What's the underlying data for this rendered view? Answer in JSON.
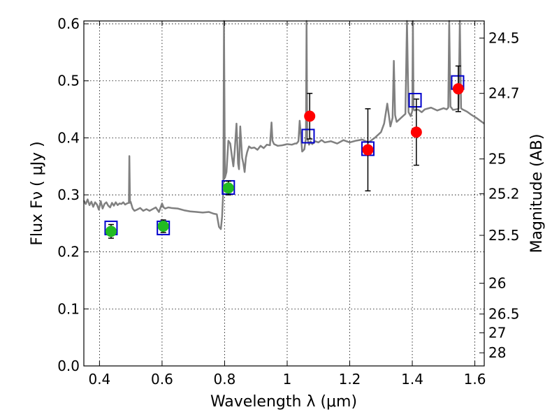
{
  "chart_data": {
    "type": "scatter",
    "xlabel": "Wavelength  λ (μm)",
    "ylabel": "Flux  Fν  ( μJy )",
    "y2label": "Magnitude (AB)",
    "xlim": [
      0.35,
      1.63
    ],
    "ylim": [
      0.0,
      0.605
    ],
    "grid": true,
    "x_ticks": [
      0.4,
      0.6,
      0.8,
      1.0,
      1.2,
      1.4,
      1.6
    ],
    "x_tick_labels": [
      "0.4",
      "0.6",
      "0.8",
      "1",
      "1.2",
      "1.4",
      "1.6"
    ],
    "y_ticks": [
      0.0,
      0.1,
      0.2,
      0.3,
      0.4,
      0.5,
      0.6
    ],
    "y_tick_labels": [
      "0.0",
      "0.1",
      "0.2",
      "0.3",
      "0.4",
      "0.5",
      "0.6"
    ],
    "y2_ticks": [
      {
        "label": "24.5",
        "flux": 0.575
      },
      {
        "label": "24.7",
        "flux": 0.478
      },
      {
        "label": "25",
        "flux": 0.363
      },
      {
        "label": "25.2",
        "flux": 0.302
      },
      {
        "label": "25.5",
        "flux": 0.229
      },
      {
        "label": "26",
        "flux": 0.145
      },
      {
        "label": "26.5",
        "flux": 0.091
      },
      {
        "label": "27",
        "flux": 0.058
      },
      {
        "label": "28",
        "flux": 0.023
      }
    ],
    "model_spectrum": {
      "color": "#808080",
      "x": [
        0.35,
        0.356,
        0.362,
        0.368,
        0.374,
        0.38,
        0.386,
        0.392,
        0.398,
        0.404,
        0.41,
        0.416,
        0.422,
        0.428,
        0.434,
        0.44,
        0.446,
        0.452,
        0.458,
        0.464,
        0.47,
        0.476,
        0.482,
        0.488,
        0.494,
        0.4955,
        0.4975,
        0.4995,
        0.506,
        0.512,
        0.52,
        0.53,
        0.54,
        0.55,
        0.56,
        0.57,
        0.58,
        0.59,
        0.6,
        0.605,
        0.61,
        0.62,
        0.63,
        0.65,
        0.67,
        0.69,
        0.71,
        0.73,
        0.75,
        0.765,
        0.775,
        0.782,
        0.788,
        0.792,
        0.796,
        0.798,
        0.801,
        0.806,
        0.812,
        0.818,
        0.824,
        0.828,
        0.832,
        0.838,
        0.843,
        0.846,
        0.85,
        0.856,
        0.86,
        0.864,
        0.868,
        0.872,
        0.878,
        0.885,
        0.895,
        0.905,
        0.915,
        0.925,
        0.935,
        0.945,
        0.95,
        0.953,
        0.958,
        0.97,
        0.985,
        1.0,
        1.015,
        1.025,
        1.03,
        1.036,
        1.04,
        1.048,
        1.055,
        1.06,
        1.062,
        1.064,
        1.07,
        1.075,
        1.08,
        1.09,
        1.1,
        1.11,
        1.12,
        1.14,
        1.16,
        1.18,
        1.2,
        1.22,
        1.24,
        1.26,
        1.28,
        1.3,
        1.31,
        1.32,
        1.33,
        1.337,
        1.341,
        1.345,
        1.35,
        1.36,
        1.37,
        1.378,
        1.383,
        1.388,
        1.395,
        1.4,
        1.402,
        1.404,
        1.408,
        1.412,
        1.42,
        1.43,
        1.44,
        1.46,
        1.48,
        1.5,
        1.51,
        1.515,
        1.518,
        1.522,
        1.53,
        1.54,
        1.548,
        1.552,
        1.556,
        1.56,
        1.575,
        1.59,
        1.605,
        1.62,
        1.63
      ],
      "y": [
        0.29,
        0.284,
        0.292,
        0.282,
        0.288,
        0.279,
        0.287,
        0.283,
        0.274,
        0.289,
        0.276,
        0.284,
        0.287,
        0.281,
        0.278,
        0.286,
        0.281,
        0.287,
        0.282,
        0.285,
        0.284,
        0.287,
        0.283,
        0.285,
        0.286,
        0.368,
        0.286,
        0.288,
        0.276,
        0.272,
        0.274,
        0.277,
        0.272,
        0.275,
        0.272,
        0.275,
        0.278,
        0.27,
        0.285,
        0.278,
        0.276,
        0.278,
        0.277,
        0.276,
        0.273,
        0.271,
        0.27,
        0.269,
        0.27,
        0.267,
        0.266,
        0.244,
        0.24,
        0.262,
        0.31,
        0.605,
        0.33,
        0.34,
        0.395,
        0.39,
        0.365,
        0.35,
        0.375,
        0.425,
        0.355,
        0.345,
        0.42,
        0.365,
        0.355,
        0.34,
        0.365,
        0.375,
        0.385,
        0.382,
        0.383,
        0.379,
        0.386,
        0.382,
        0.388,
        0.387,
        0.427,
        0.395,
        0.389,
        0.386,
        0.387,
        0.389,
        0.388,
        0.39,
        0.39,
        0.394,
        0.43,
        0.376,
        0.38,
        0.4,
        0.605,
        0.4,
        0.388,
        0.394,
        0.389,
        0.394,
        0.392,
        0.396,
        0.392,
        0.394,
        0.39,
        0.396,
        0.392,
        0.395,
        0.397,
        0.392,
        0.4,
        0.41,
        0.425,
        0.46,
        0.42,
        0.435,
        0.535,
        0.44,
        0.428,
        0.433,
        0.438,
        0.442,
        0.605,
        0.445,
        0.438,
        0.447,
        0.605,
        0.45,
        0.448,
        0.45,
        0.449,
        0.445,
        0.45,
        0.453,
        0.448,
        0.452,
        0.45,
        0.453,
        0.605,
        0.455,
        0.449,
        0.45,
        0.451,
        0.605,
        0.452,
        0.45,
        0.446,
        0.44,
        0.435,
        0.429,
        0.425
      ]
    },
    "series": [
      {
        "marker": "square",
        "color": "#0000cc",
        "x": [
          0.437,
          0.604,
          0.812,
          1.067,
          1.258,
          1.409,
          1.545
        ],
        "y": [
          0.242,
          0.242,
          0.313,
          0.403,
          0.381,
          0.466,
          0.497
        ]
      },
      {
        "marker": "circle",
        "color": "#22bb22",
        "x": [
          0.437,
          0.604,
          0.812
        ],
        "y": [
          0.236,
          0.245,
          0.312
        ],
        "yerr": [
          0.012,
          0.011,
          0.012
        ]
      },
      {
        "marker": "circle",
        "color": "#ff0000",
        "x": [
          1.072,
          1.258,
          1.413,
          1.547
        ],
        "y": [
          0.438,
          0.379,
          0.41,
          0.486
        ],
        "yerr": [
          0.04,
          0.072,
          0.058,
          0.04
        ]
      }
    ]
  }
}
